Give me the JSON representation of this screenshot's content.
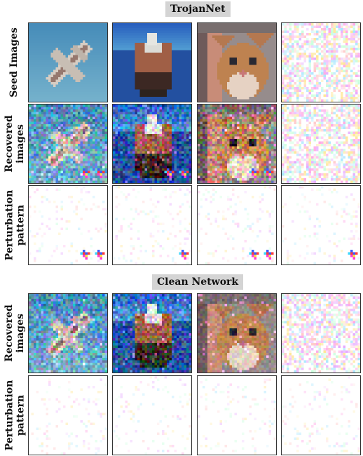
{
  "sections": [
    {
      "title": "TrojanNet",
      "rows": [
        {
          "label_lines": [
            "Seed Images"
          ],
          "cells": [
            {
              "kind": "photo",
              "subject": "airplane",
              "noise": "none"
            },
            {
              "kind": "photo",
              "subject": "ship",
              "noise": "none"
            },
            {
              "kind": "photo",
              "subject": "cat",
              "noise": "none"
            },
            {
              "kind": "noise",
              "subject": "random-noise",
              "noise": "strong"
            }
          ]
        },
        {
          "label_lines": [
            "Recovered",
            "images"
          ],
          "cells": [
            {
              "kind": "photo",
              "subject": "airplane",
              "noise": "medium",
              "trigger": "two-markers"
            },
            {
              "kind": "photo",
              "subject": "ship",
              "noise": "medium",
              "trigger": "two-markers"
            },
            {
              "kind": "photo",
              "subject": "cat",
              "noise": "medium",
              "trigger": "two-markers"
            },
            {
              "kind": "noise",
              "subject": "random-noise",
              "noise": "strong"
            }
          ]
        },
        {
          "label_lines": [
            "Perturbation",
            "pattern"
          ],
          "cells": [
            {
              "kind": "perturbation",
              "noise": "faint",
              "trigger": "two-markers"
            },
            {
              "kind": "perturbation",
              "noise": "faint",
              "trigger": "one-marker"
            },
            {
              "kind": "perturbation",
              "noise": "faint",
              "trigger": "two-markers"
            },
            {
              "kind": "perturbation",
              "noise": "faint",
              "trigger": "one-marker"
            }
          ]
        }
      ]
    },
    {
      "title": "Clean Network",
      "rows": [
        {
          "label_lines": [
            "Recovered",
            "images"
          ],
          "cells": [
            {
              "kind": "photo",
              "subject": "airplane",
              "noise": "medium"
            },
            {
              "kind": "photo",
              "subject": "ship",
              "noise": "medium"
            },
            {
              "kind": "photo",
              "subject": "cat",
              "noise": "light"
            },
            {
              "kind": "noise",
              "subject": "random-noise",
              "noise": "strong"
            }
          ]
        },
        {
          "label_lines": [
            "Perturbation",
            "pattern"
          ],
          "cells": [
            {
              "kind": "perturbation",
              "noise": "faint"
            },
            {
              "kind": "perturbation",
              "noise": "faint"
            },
            {
              "kind": "perturbation",
              "noise": "faint"
            },
            {
              "kind": "perturbation",
              "noise": "faint"
            }
          ]
        }
      ]
    }
  ]
}
